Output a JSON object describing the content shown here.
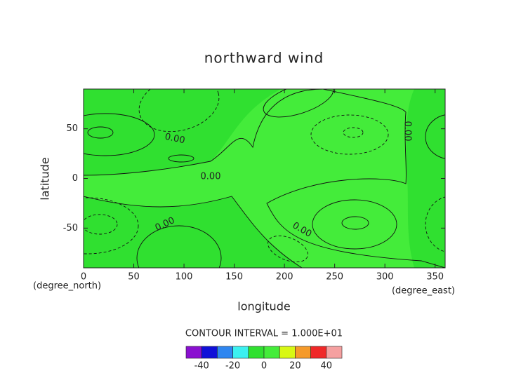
{
  "chart_data": {
    "type": "contour",
    "title": "northward wind",
    "x_label": "longitude",
    "y_label": "latitude",
    "y_units": "(degree_north)",
    "x_units": "(degree_east)",
    "xlim": [
      0,
      360
    ],
    "ylim": [
      -90,
      90
    ],
    "xticks": [
      0,
      50,
      100,
      150,
      200,
      250,
      300,
      350
    ],
    "yticks": [
      -50,
      0,
      50
    ],
    "contour_labels": [
      "0.00",
      "0.00",
      "0.00",
      "0.00",
      "0.00"
    ],
    "contour_interval": "CONTOUR INTERVAL = 1.000E+01",
    "levels": [
      -50,
      -40,
      -30,
      -20,
      -10,
      0,
      10,
      20,
      30,
      40,
      50
    ],
    "colors": [
      "#8a10d0",
      "#1010d8",
      "#2e86f0",
      "#3cf0f0",
      "#30e030",
      "#44ec3a",
      "#d8f814",
      "#f59a2a",
      "#f02828",
      "#f5a0a0"
    ],
    "colorbar_ticks": [
      -40,
      -20,
      0,
      20,
      40
    ]
  }
}
